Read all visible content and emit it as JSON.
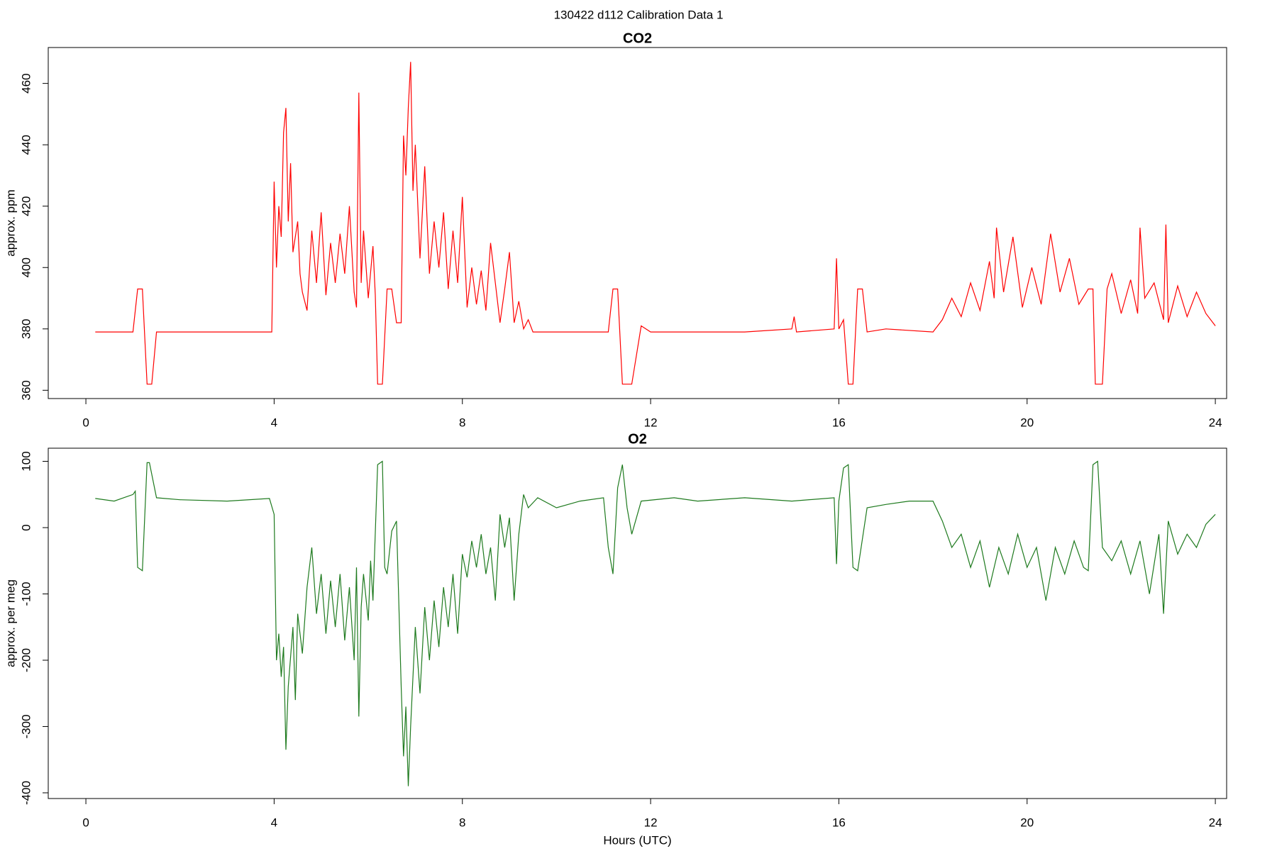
{
  "title": "130422   d112   Calibration Data 1",
  "chart_data": [
    {
      "type": "line",
      "title": "CO2",
      "ylabel": "approx. ppm",
      "color": "#ff0000",
      "xlim": [
        -0.8,
        24.24
      ],
      "xticks": [
        0,
        4,
        8,
        12,
        16,
        20,
        24
      ],
      "ylim": [
        357.3,
        471.7
      ],
      "yticks": [
        360,
        380,
        400,
        420,
        440,
        460
      ],
      "x": [
        0.2,
        1.0,
        1.1,
        1.2,
        1.3,
        1.4,
        1.5,
        3.95,
        4.0,
        4.05,
        4.1,
        4.15,
        4.2,
        4.25,
        4.3,
        4.35,
        4.4,
        4.5,
        4.55,
        4.6,
        4.7,
        4.8,
        4.9,
        5.0,
        5.1,
        5.2,
        5.3,
        5.4,
        5.5,
        5.6,
        5.7,
        5.75,
        5.8,
        5.85,
        5.9,
        6.0,
        6.1,
        6.15,
        6.2,
        6.3,
        6.4,
        6.5,
        6.6,
        6.7,
        6.75,
        6.8,
        6.85,
        6.9,
        6.95,
        7.0,
        7.1,
        7.2,
        7.3,
        7.4,
        7.5,
        7.6,
        7.7,
        7.8,
        7.9,
        8.0,
        8.1,
        8.2,
        8.3,
        8.4,
        8.5,
        8.6,
        8.7,
        8.8,
        8.9,
        9.0,
        9.1,
        9.2,
        9.3,
        9.4,
        9.5,
        10,
        11.0,
        11.1,
        11.2,
        11.3,
        11.4,
        11.6,
        11.8,
        12,
        14,
        15,
        15.05,
        15.1,
        15.9,
        15.95,
        16.0,
        16.1,
        16.2,
        16.3,
        16.4,
        16.5,
        16.6,
        17,
        18,
        18.2,
        18.4,
        18.6,
        18.8,
        19.0,
        19.2,
        19.3,
        19.35,
        19.5,
        19.7,
        19.9,
        20.1,
        20.3,
        20.5,
        20.7,
        20.9,
        21.1,
        21.3,
        21.4,
        21.45,
        21.6,
        21.7,
        21.8,
        22.0,
        22.2,
        22.35,
        22.4,
        22.5,
        22.7,
        22.9,
        22.95,
        23.0,
        23.2,
        23.4,
        23.6,
        23.8,
        24.0
      ],
      "values": [
        379,
        379,
        393,
        393,
        362,
        362,
        379,
        379,
        428,
        400,
        420,
        410,
        444,
        452,
        415,
        434,
        405,
        415,
        398,
        392,
        386,
        412,
        395,
        418,
        391,
        408,
        395,
        411,
        398,
        420,
        392,
        387,
        457,
        395,
        412,
        390,
        407,
        391,
        362,
        362,
        393,
        393,
        382,
        382,
        443,
        430,
        452,
        467,
        425,
        440,
        403,
        433,
        398,
        415,
        400,
        418,
        393,
        412,
        395,
        423,
        387,
        400,
        388,
        399,
        386,
        408,
        395,
        382,
        393,
        405,
        382,
        389,
        380,
        383,
        379,
        379,
        379,
        379,
        393,
        393,
        362,
        362,
        381,
        379,
        379,
        380,
        384,
        379,
        380,
        403,
        380,
        383,
        362,
        362,
        393,
        393,
        379,
        380,
        379,
        383,
        390,
        384,
        395,
        386,
        402,
        390,
        413,
        392,
        410,
        387,
        400,
        388,
        411,
        392,
        403,
        388,
        393,
        393,
        362,
        362,
        393,
        398,
        385,
        396,
        385,
        413,
        390,
        395,
        383,
        414,
        382,
        394,
        384,
        392,
        385,
        381
      ]
    },
    {
      "type": "line",
      "title": "O2",
      "ylabel": "approx. per meg",
      "xlabel": "Hours (UTC)",
      "color": "#1e7a1e",
      "xlim": [
        -0.8,
        24.24
      ],
      "xticks": [
        0,
        4,
        8,
        12,
        16,
        20,
        24
      ],
      "ylim": [
        -408.6,
        119.8
      ],
      "yticks": [
        -400,
        -300,
        -200,
        -100,
        0,
        100
      ],
      "x": [
        0.2,
        0.6,
        1.0,
        1.05,
        1.1,
        1.2,
        1.3,
        1.35,
        1.5,
        2,
        3,
        3.9,
        4.0,
        4.05,
        4.1,
        4.15,
        4.2,
        4.25,
        4.3,
        4.4,
        4.45,
        4.5,
        4.6,
        4.7,
        4.8,
        4.9,
        5.0,
        5.1,
        5.2,
        5.3,
        5.4,
        5.5,
        5.6,
        5.7,
        5.75,
        5.8,
        5.85,
        5.9,
        6.0,
        6.05,
        6.1,
        6.2,
        6.3,
        6.35,
        6.4,
        6.5,
        6.6,
        6.7,
        6.75,
        6.8,
        6.85,
        6.9,
        7.0,
        7.1,
        7.2,
        7.3,
        7.4,
        7.5,
        7.6,
        7.7,
        7.8,
        7.9,
        8.0,
        8.1,
        8.2,
        8.3,
        8.4,
        8.5,
        8.6,
        8.7,
        8.8,
        8.9,
        9.0,
        9.1,
        9.2,
        9.3,
        9.4,
        9.6,
        10,
        10.5,
        11.0,
        11.1,
        11.2,
        11.3,
        11.4,
        11.5,
        11.6,
        11.8,
        12.5,
        13,
        14,
        15,
        15.9,
        15.95,
        16.0,
        16.1,
        16.2,
        16.3,
        16.4,
        16.6,
        17,
        17.5,
        18.0,
        18.2,
        18.4,
        18.6,
        18.8,
        19.0,
        19.2,
        19.4,
        19.6,
        19.8,
        20.0,
        20.2,
        20.4,
        20.6,
        20.8,
        21.0,
        21.2,
        21.3,
        21.4,
        21.5,
        21.6,
        21.8,
        22.0,
        22.2,
        22.4,
        22.6,
        22.8,
        22.9,
        23.0,
        23.2,
        23.4,
        23.6,
        23.8,
        24.0
      ],
      "values": [
        44,
        40,
        50,
        55,
        -60,
        -65,
        98,
        98,
        45,
        42,
        40,
        44,
        20,
        -200,
        -160,
        -225,
        -180,
        -335,
        -240,
        -150,
        -260,
        -130,
        -190,
        -90,
        -30,
        -130,
        -70,
        -160,
        -80,
        -150,
        -70,
        -170,
        -90,
        -200,
        -60,
        -285,
        -120,
        -70,
        -140,
        -50,
        -110,
        95,
        100,
        -60,
        -70,
        -5,
        10,
        -240,
        -345,
        -270,
        -390,
        -300,
        -150,
        -250,
        -120,
        -200,
        -110,
        -180,
        -90,
        -150,
        -70,
        -160,
        -40,
        -75,
        -20,
        -60,
        -10,
        -70,
        -30,
        -110,
        20,
        -30,
        15,
        -110,
        -10,
        50,
        30,
        45,
        30,
        40,
        45,
        -30,
        -70,
        60,
        95,
        30,
        -10,
        40,
        45,
        40,
        45,
        40,
        45,
        -55,
        40,
        90,
        95,
        -60,
        -65,
        30,
        35,
        40,
        40,
        10,
        -30,
        -10,
        -60,
        -20,
        -90,
        -30,
        -70,
        -10,
        -60,
        -30,
        -110,
        -30,
        -70,
        -20,
        -60,
        -65,
        95,
        100,
        -30,
        -50,
        -20,
        -70,
        -20,
        -100,
        -10,
        -130,
        10,
        -40,
        -10,
        -30,
        5,
        20
      ]
    }
  ]
}
